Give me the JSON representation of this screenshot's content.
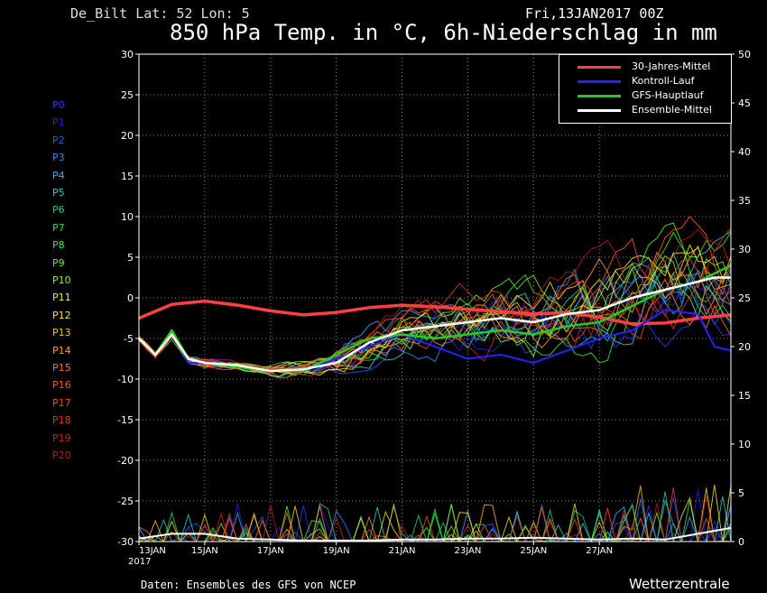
{
  "header": {
    "station": "De_Bilt   Lat: 52  Lon: 5",
    "run": "Fri,13JAN2017 00Z",
    "title": "850 hPa Temp. in °C, 6h-Niederschlag in mm"
  },
  "members": [
    {
      "label": "P0",
      "color": "#3333ff"
    },
    {
      "label": "P1",
      "color": "#2222ee"
    },
    {
      "label": "P2",
      "color": "#1a5cff"
    },
    {
      "label": "P3",
      "color": "#1e90ff"
    },
    {
      "label": "P4",
      "color": "#33aaff"
    },
    {
      "label": "P5",
      "color": "#33cccc"
    },
    {
      "label": "P6",
      "color": "#22cc88"
    },
    {
      "label": "P7",
      "color": "#22dd55"
    },
    {
      "label": "P8",
      "color": "#33ee33"
    },
    {
      "label": "P9",
      "color": "#66ee22"
    },
    {
      "label": "P10",
      "color": "#99ee22"
    },
    {
      "label": "P11",
      "color": "#eeee22"
    },
    {
      "label": "P12",
      "color": "#ffdd22"
    },
    {
      "label": "P13",
      "color": "#ffbb22"
    },
    {
      "label": "P14",
      "color": "#ff9922"
    },
    {
      "label": "P15",
      "color": "#ff7722"
    },
    {
      "label": "P16",
      "color": "#ff5522"
    },
    {
      "label": "P17",
      "color": "#ee4422"
    },
    {
      "label": "P18",
      "color": "#dd3322"
    },
    {
      "label": "P19",
      "color": "#cc2222"
    },
    {
      "label": "P20",
      "color": "#bb1a1a"
    }
  ],
  "legend": [
    {
      "label": "30-Jahres-Mittel",
      "color": "#ff4040"
    },
    {
      "label": "Kontroll-Lauf",
      "color": "#2222ff"
    },
    {
      "label": "GFS-Hauptlauf",
      "color": "#22cc22"
    },
    {
      "label": "Ensemble-Mittel",
      "color": "#ffffff"
    }
  ],
  "footer": {
    "source": "Daten: Ensembles des GFS von NCEP",
    "brand": "Wetterzentrale"
  },
  "chart_data": {
    "type": "line",
    "grid": true,
    "x_ticks": [
      "13JAN",
      "15JAN",
      "17JAN",
      "19JAN",
      "21JAN",
      "23JAN",
      "25JAN",
      "27JAN"
    ],
    "x_first_sub": "2017",
    "x_range_days": [
      0,
      18
    ],
    "y_left": {
      "label": "",
      "range": [
        -30,
        30
      ],
      "ticks": [
        30,
        25,
        20,
        15,
        10,
        5,
        0,
        -5,
        -10,
        -15,
        -20,
        -25,
        -30
      ]
    },
    "y_right": {
      "label": "",
      "range": [
        0,
        50
      ],
      "ticks": [
        50,
        45,
        40,
        35,
        30,
        25,
        20,
        15,
        10,
        5,
        0
      ]
    },
    "series": [
      {
        "name": "30-Jahres-Mittel",
        "axis": "left",
        "x": [
          0,
          1,
          2,
          3,
          4,
          5,
          6,
          7,
          8,
          9,
          10,
          11,
          12,
          13,
          14,
          15,
          16,
          17,
          18
        ],
        "y": [
          -2.5,
          -0.8,
          -0.4,
          -0.9,
          -1.6,
          -2.1,
          -1.8,
          -1.2,
          -0.9,
          -1.1,
          -1.4,
          -1.7,
          -2.0,
          -1.8,
          -2.4,
          -3.2,
          -3.1,
          -2.5,
          -2.1
        ]
      },
      {
        "name": "Kontroll-Lauf",
        "axis": "left",
        "x": [
          0,
          0.5,
          1,
          1.5,
          2,
          3,
          4,
          5,
          6,
          7,
          8,
          9,
          10,
          11,
          12,
          13,
          14,
          15,
          16,
          17,
          17.5,
          18
        ],
        "y": [
          -5,
          -7,
          -4,
          -8,
          -8,
          -8.5,
          -9,
          -9,
          -7.5,
          -6,
          -4.5,
          -6,
          -7.5,
          -7,
          -8,
          -6.5,
          -5,
          -4,
          -1.5,
          -2,
          -6,
          -6.5
        ]
      },
      {
        "name": "GFS-Hauptlauf",
        "axis": "left",
        "x": [
          0,
          0.5,
          1,
          1.5,
          2,
          3,
          4,
          5,
          6,
          7,
          8,
          9,
          10,
          11,
          12,
          13,
          14,
          15,
          16,
          17,
          17.5,
          18
        ],
        "y": [
          -5,
          -7,
          -4,
          -7.5,
          -8,
          -8.5,
          -9,
          -9,
          -7,
          -5,
          -4.5,
          -5,
          -4.5,
          -4,
          -4.5,
          -3.5,
          -3,
          -1,
          1,
          2,
          3,
          4
        ]
      },
      {
        "name": "Ensemble-Mittel",
        "axis": "left",
        "x": [
          0,
          0.5,
          1,
          1.5,
          2,
          3,
          4,
          5,
          6,
          7,
          8,
          9,
          10,
          11,
          12,
          13,
          14,
          15,
          16,
          17,
          17.5,
          18
        ],
        "y": [
          -5,
          -7,
          -4.5,
          -7.5,
          -8,
          -8.3,
          -9,
          -8.8,
          -8,
          -5.5,
          -4,
          -3.5,
          -3,
          -2.5,
          -3,
          -2,
          -1.5,
          0,
          1,
          2,
          2.5,
          2.5
        ]
      },
      {
        "name": "Ensemble-Mittel Niederschlag",
        "axis": "right",
        "x": [
          0,
          1,
          2,
          3,
          4,
          5,
          6,
          7,
          8,
          9,
          10,
          11,
          12,
          13,
          14,
          15,
          16,
          17,
          18
        ],
        "y": [
          0.3,
          0.8,
          0.8,
          0.3,
          0.2,
          0.1,
          0.1,
          0.1,
          0.2,
          0.2,
          0.3,
          0.3,
          0.4,
          0.3,
          0.2,
          0.3,
          0.2,
          0.8,
          1.4
        ]
      }
    ]
  }
}
